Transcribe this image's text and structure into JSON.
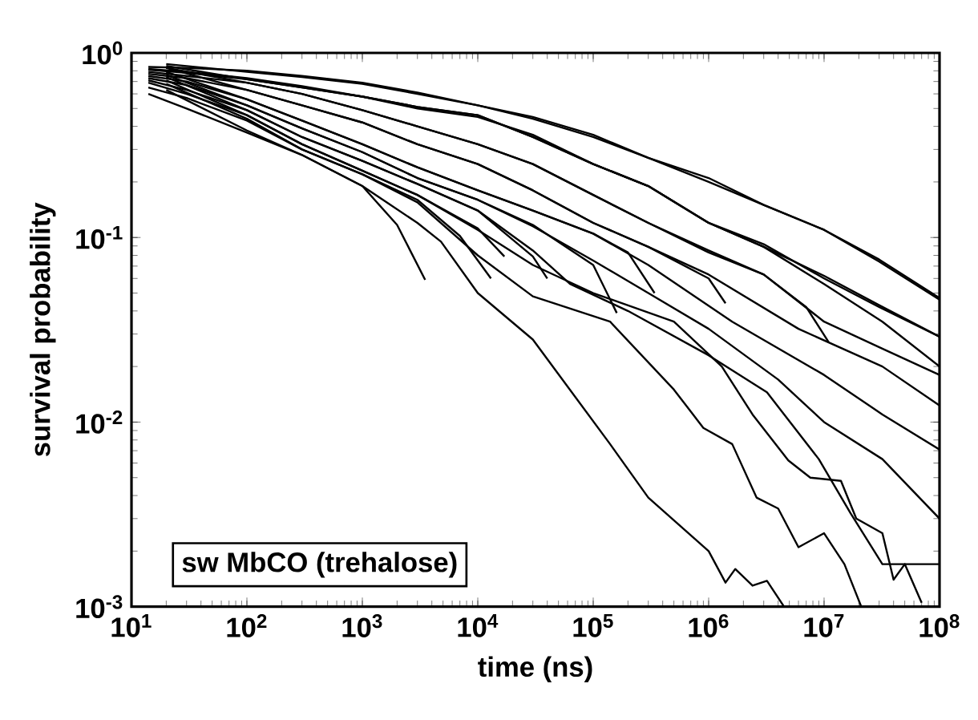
{
  "chart_data": {
    "type": "line",
    "xlabel": "time (ns)",
    "ylabel": "survival probability",
    "log": "xy",
    "marker": "none",
    "line_style": "solid",
    "xlim": [
      10,
      100000000
    ],
    "ylim": [
      0.001,
      1
    ],
    "xticks": [
      {
        "value": 10,
        "label": "10$^{1}$"
      },
      {
        "value": 100,
        "label": "10$^{2}$"
      },
      {
        "value": 1000,
        "label": "10$^{3}$"
      },
      {
        "value": 10000,
        "label": "10$^{4}$"
      },
      {
        "value": 100000,
        "label": "10$^{5}$"
      },
      {
        "value": 1000000,
        "label": "10$^{6}$"
      },
      {
        "value": 10000000,
        "label": "10$^{7}$"
      },
      {
        "value": 100000000,
        "label": "10$^{8}$"
      }
    ],
    "yticks": [
      {
        "value": 0.001,
        "label": "10$^{-3}$"
      },
      {
        "value": 0.01,
        "label": "10$^{-2}$"
      },
      {
        "value": 0.1,
        "label": "10$^{-1}$"
      },
      {
        "value": 1,
        "label": "10$^{0}$"
      }
    ],
    "annotations": [
      "sw MbCO (trehalose)"
    ],
    "series": [
      {
        "color": "#000000",
        "x": [
          14,
          30,
          100,
          300,
          1000,
          3000,
          4800,
          10000,
          30000,
          140000,
          300000,
          1000000,
          1400000,
          1700000,
          2400000,
          3200000,
          4500000
        ],
        "values": [
          0.6,
          0.5,
          0.37,
          0.28,
          0.19,
          0.12,
          0.095,
          0.05,
          0.028,
          0.0076,
          0.0039,
          0.002,
          0.00135,
          0.0016,
          0.0013,
          0.00138,
          0.001
        ]
      },
      {
        "color": "#000000",
        "x": [
          14,
          30,
          100,
          300,
          1000,
          3000,
          10000,
          30000,
          140000,
          500000,
          900000,
          1600000,
          2600000,
          4000000,
          6000000,
          10000000,
          15000000,
          21000000
        ],
        "values": [
          0.65,
          0.57,
          0.43,
          0.3,
          0.22,
          0.155,
          0.08,
          0.048,
          0.035,
          0.015,
          0.0093,
          0.0076,
          0.0039,
          0.0034,
          0.0021,
          0.0025,
          0.0017,
          0.001
        ]
      },
      {
        "color": "#000000",
        "x": [
          14,
          30,
          100,
          300,
          1000,
          3000,
          10000,
          30000,
          100000,
          500000,
          1300000,
          2400000,
          4900000,
          7600000,
          14000000,
          19000000,
          32000000,
          40000000,
          50000000,
          70000000
        ],
        "values": [
          0.69,
          0.6,
          0.46,
          0.32,
          0.23,
          0.17,
          0.11,
          0.071,
          0.05,
          0.035,
          0.02,
          0.011,
          0.0062,
          0.005,
          0.0048,
          0.003,
          0.0025,
          0.0014,
          0.0017,
          0.00105
        ]
      },
      {
        "color": "#000000",
        "x": [
          14,
          30,
          100,
          300,
          1000,
          3000,
          10000,
          30000,
          63000,
          200000,
          1000000,
          3200000,
          9000000,
          17000000,
          32000000,
          100000000
        ],
        "values": [
          0.71,
          0.63,
          0.49,
          0.35,
          0.26,
          0.195,
          0.14,
          0.085,
          0.056,
          0.04,
          0.023,
          0.0145,
          0.0063,
          0.0032,
          0.0017,
          0.0017
        ]
      },
      {
        "color": "#000000",
        "x": [
          14,
          30,
          100,
          300,
          1000,
          3000,
          10000,
          30000,
          100000,
          300000,
          1000000,
          4000000,
          10000000,
          32000000,
          100000000
        ],
        "values": [
          0.73,
          0.67,
          0.52,
          0.39,
          0.29,
          0.21,
          0.16,
          0.115,
          0.075,
          0.05,
          0.032,
          0.017,
          0.01,
          0.0063,
          0.003
        ]
      },
      {
        "color": "#000000",
        "x": [
          14,
          30,
          100,
          300,
          1000,
          3000,
          10000,
          30000,
          100000,
          300000,
          1600000,
          10000000,
          32000000,
          100000000
        ],
        "values": [
          0.75,
          0.7,
          0.56,
          0.43,
          0.32,
          0.24,
          0.18,
          0.14,
          0.105,
          0.071,
          0.035,
          0.018,
          0.011,
          0.0071
        ]
      },
      {
        "color": "#000000",
        "x": [
          14,
          30,
          100,
          300,
          1000,
          3000,
          10000,
          30000,
          100000,
          300000,
          1000000,
          6000000,
          32000000,
          100000000
        ],
        "values": [
          0.77,
          0.73,
          0.63,
          0.52,
          0.42,
          0.32,
          0.25,
          0.18,
          0.12,
          0.089,
          0.063,
          0.032,
          0.02,
          0.0123
        ]
      },
      {
        "color": "#000000",
        "x": [
          14,
          30,
          100,
          300,
          1000,
          3000,
          10000,
          30000,
          100000,
          300000,
          1000000,
          3000000,
          10000000,
          32000000,
          100000000
        ],
        "values": [
          0.79,
          0.75,
          0.69,
          0.6,
          0.49,
          0.4,
          0.32,
          0.25,
          0.17,
          0.12,
          0.085,
          0.063,
          0.035,
          0.025,
          0.018
        ]
      },
      {
        "color": "#000000",
        "x": [
          14,
          30,
          100,
          300,
          1000,
          3000,
          10000,
          30000,
          100000,
          300000,
          1000000,
          3000000,
          10000000,
          32000000,
          100000000
        ],
        "values": [
          0.81,
          0.78,
          0.72,
          0.65,
          0.58,
          0.51,
          0.46,
          0.35,
          0.25,
          0.19,
          0.12,
          0.089,
          0.056,
          0.035,
          0.02
        ]
      },
      {
        "color": "#000000",
        "x": [
          14,
          30,
          100,
          300,
          1000,
          3000,
          10000,
          30000,
          100000,
          300000,
          1000000,
          3000000,
          10000000,
          30000000,
          100000000
        ],
        "values": [
          0.82,
          0.79,
          0.73,
          0.66,
          0.58,
          0.5,
          0.45,
          0.36,
          0.25,
          0.19,
          0.12,
          0.092,
          0.06,
          0.042,
          0.029
        ]
      },
      {
        "color": "#000000",
        "x": [
          14,
          30,
          100,
          300,
          1000,
          3000,
          10000,
          30000,
          100000,
          300000,
          1000000,
          3000000,
          10000000,
          30000000,
          100000000
        ],
        "values": [
          0.84,
          0.83,
          0.8,
          0.75,
          0.69,
          0.61,
          0.52,
          0.45,
          0.36,
          0.27,
          0.21,
          0.15,
          0.11,
          0.076,
          0.047
        ]
      },
      {
        "color": "#000000",
        "x": [
          20,
          100,
          300,
          1000,
          3000,
          10000,
          30000,
          100000,
          300000,
          1000000,
          3000000,
          10000000,
          30000000,
          100000000
        ],
        "values": [
          0.87,
          0.79,
          0.74,
          0.68,
          0.6,
          0.52,
          0.44,
          0.35,
          0.27,
          0.2,
          0.15,
          0.11,
          0.074,
          0.046
        ]
      },
      {
        "color": "#000000",
        "x": [
          20,
          100,
          300,
          1000,
          3000,
          10000,
          30000,
          100000,
          300000,
          1000000,
          3000000,
          10000000,
          30000000,
          100000000
        ],
        "values": [
          0.85,
          0.72,
          0.65,
          0.58,
          0.51,
          0.46,
          0.35,
          0.25,
          0.19,
          0.12,
          0.089,
          0.062,
          0.043,
          0.029
        ]
      },
      {
        "color": "#000000",
        "x": [
          20,
          100,
          300,
          1000,
          3000,
          10000,
          30000,
          100000,
          300000,
          1000000,
          3000000,
          7000000,
          11000000
        ],
        "values": [
          0.83,
          0.69,
          0.6,
          0.49,
          0.4,
          0.32,
          0.25,
          0.17,
          0.12,
          0.083,
          0.063,
          0.042,
          0.027
        ]
      },
      {
        "color": "#000000",
        "x": [
          20,
          100,
          300,
          1000,
          3000,
          10000,
          30000,
          100000,
          300000,
          1000000,
          1400000
        ],
        "values": [
          0.83,
          0.63,
          0.52,
          0.42,
          0.32,
          0.25,
          0.18,
          0.12,
          0.089,
          0.06,
          0.044
        ]
      },
      {
        "color": "#000000",
        "x": [
          20,
          100,
          300,
          1000,
          3000,
          10000,
          30000,
          100000,
          200000,
          340000
        ],
        "values": [
          0.79,
          0.56,
          0.43,
          0.32,
          0.24,
          0.18,
          0.14,
          0.105,
          0.083,
          0.05
        ]
      },
      {
        "color": "#000000",
        "x": [
          20,
          100,
          300,
          1000,
          3000,
          10000,
          30000,
          100000,
          160000
        ],
        "values": [
          0.76,
          0.52,
          0.39,
          0.29,
          0.21,
          0.16,
          0.117,
          0.071,
          0.039
        ]
      },
      {
        "color": "#000000",
        "x": [
          20,
          100,
          300,
          1000,
          3000,
          10000,
          30000,
          40000
        ],
        "values": [
          0.74,
          0.49,
          0.35,
          0.26,
          0.195,
          0.14,
          0.079,
          0.06
        ]
      },
      {
        "color": "#000000",
        "x": [
          20,
          100,
          300,
          1000,
          3000,
          10000,
          17000
        ],
        "values": [
          0.71,
          0.46,
          0.32,
          0.23,
          0.17,
          0.112,
          0.079
        ]
      },
      {
        "color": "#000000",
        "x": [
          20,
          100,
          300,
          1000,
          3000,
          7000,
          13000
        ],
        "values": [
          0.68,
          0.44,
          0.3,
          0.22,
          0.16,
          0.102,
          0.06
        ]
      },
      {
        "color": "#000000",
        "x": [
          20,
          100,
          300,
          1000,
          2000,
          3500
        ],
        "values": [
          0.63,
          0.38,
          0.28,
          0.19,
          0.117,
          0.059
        ]
      }
    ]
  }
}
